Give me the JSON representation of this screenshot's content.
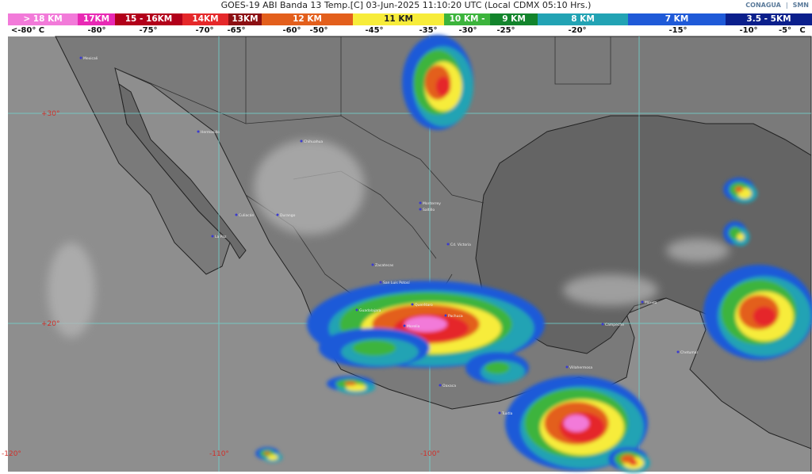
{
  "header": {
    "title": "GOES-19 ABI Banda 13 Temp.[C] 03-Jun-2025 11:10:20 UTC (Local CDMX  05:10 Hrs.)",
    "logos": [
      "CONAGUA",
      "SMN"
    ]
  },
  "scale": {
    "segments": [
      {
        "label": "> 18 KM",
        "color": "#f27ad9"
      },
      {
        "label": "17KM",
        "color": "#e829b4"
      },
      {
        "label": "15 - 16KM",
        "color": "#b2001a"
      },
      {
        "label": "14KM",
        "color": "#e5282a"
      },
      {
        "label": "13KM",
        "color": "#8c0f12"
      },
      {
        "label": "12 KM",
        "color": "#e35f1c"
      },
      {
        "label": "11 KM",
        "color": "#f7ec3a"
      },
      {
        "label": "10 KM -",
        "color": "#3cb43c"
      },
      {
        "label": "9 KM",
        "color": "#12842c"
      },
      {
        "label": "8 KM",
        "color": "#22a3b4"
      },
      {
        "label": "7 KM",
        "color": "#1f5ad8"
      },
      {
        "label": "3.5 - 5KM",
        "color": "#0b1f8c"
      }
    ],
    "temperatures": [
      "<-80° C",
      "-80°",
      "-75°",
      "-70°",
      "-65°",
      "-60°",
      "-50°",
      "-45°",
      "-35°",
      "-30°",
      "-25°",
      "-20°",
      "-15°",
      "-10°",
      "-5°",
      "C"
    ]
  },
  "map": {
    "latitude_labels": [
      "+30°",
      "+20°"
    ],
    "longitude_labels": [
      "-120°",
      "-110°",
      "-100°"
    ],
    "cities": [
      "Mexicali",
      "Hermosillo",
      "Chihuahua",
      "Culiacán",
      "La Paz",
      "Durango",
      "Monterrey",
      "Saltillo",
      "Cd. Victoria",
      "Zacatecas",
      "San Luis Potosí",
      "Guadalajara",
      "Querétaro",
      "Pachuca",
      "Morelia",
      "Oaxaca",
      "Villahermosa",
      "Campeche",
      "Mérida",
      "Chetumal",
      "Tuxtla"
    ],
    "grid_color": "#6fd3d0"
  }
}
